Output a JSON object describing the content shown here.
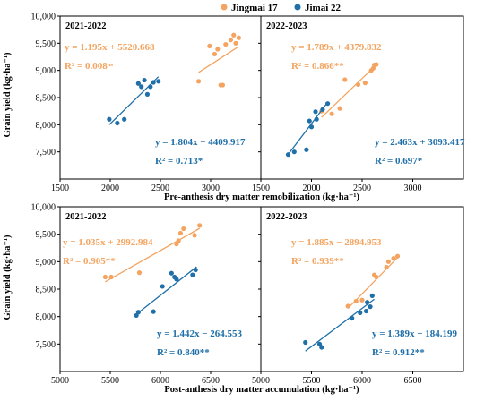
{
  "colors": {
    "jingmai": "#F4A460",
    "jimai": "#1F6FA8"
  },
  "legend": [
    {
      "name": "Jingmai 17",
      "color": "#F4A460"
    },
    {
      "name": "Jimai 22",
      "color": "#1F6FA8"
    }
  ],
  "chart_data": [
    {
      "type": "scatter",
      "title": "2021-2022",
      "xlabel": "Pre-anthesis dry matter remobilization (kg·ha⁻¹)",
      "ylabel": "Grain yield (kg·ha⁻¹)",
      "xlim": [
        1500,
        3500
      ],
      "ylim": [
        7000,
        10000
      ],
      "xticks": [
        1500,
        2000,
        2500,
        3000
      ],
      "yticks": [
        7500,
        8000,
        8500,
        9000,
        9500,
        10000
      ],
      "series": [
        {
          "name": "Jingmai 17",
          "color": "#F4A460",
          "x": [
            2880,
            2990,
            3040,
            3070,
            3100,
            3120,
            3150,
            3200,
            3230,
            3250,
            3280
          ],
          "y": [
            8800,
            9450,
            9300,
            9390,
            8730,
            8730,
            9480,
            9560,
            9650,
            9500,
            9600
          ],
          "fit": {
            "slope": 1.195,
            "intercept": 5520.668,
            "x_range": [
              2880,
              3280
            ]
          },
          "equation": "y = 1.195x + 5520.668",
          "r2": "R² = 0.008ⁿˢ"
        },
        {
          "name": "Jimai 22",
          "color": "#1F6FA8",
          "x": [
            1990,
            2070,
            2140,
            2280,
            2310,
            2340,
            2370,
            2400,
            2430,
            2480
          ],
          "y": [
            8100,
            8030,
            8100,
            8760,
            8700,
            8820,
            8560,
            8700,
            8780,
            8800
          ],
          "fit": {
            "slope": 1.804,
            "intercept": 4409.917,
            "x_range": [
              1990,
              2480
            ]
          },
          "equation": "y = 1.804x + 4409.917",
          "r2": "R² = 0.713*"
        }
      ]
    },
    {
      "type": "scatter",
      "title": "2022-2023",
      "xlabel": "Pre-anthesis dry matter remobilization (kg·ha⁻¹)",
      "ylabel": "",
      "xlim": [
        1500,
        3500
      ],
      "ylim": [
        7000,
        10000
      ],
      "xticks": [
        1500,
        2000,
        2500,
        3000
      ],
      "yticks": [
        7500,
        8000,
        8500,
        9000,
        9500,
        10000
      ],
      "series": [
        {
          "name": "Jingmai 17",
          "color": "#F4A460",
          "x": [
            2100,
            2200,
            2280,
            2330,
            2460,
            2530,
            2590,
            2610,
            2620,
            2640
          ],
          "y": [
            8250,
            8200,
            8300,
            8830,
            8740,
            8770,
            9000,
            9040,
            9100,
            9110
          ],
          "fit": {
            "slope": 1.789,
            "intercept": 4379.832,
            "x_range": [
              2100,
              2640
            ]
          },
          "equation": "y = 1.789x + 4379.832",
          "r2": "R² = 0.866**"
        },
        {
          "name": "Jimai 22",
          "color": "#1F6FA8",
          "x": [
            1770,
            1830,
            1950,
            1980,
            2000,
            2040,
            2050,
            2110,
            2160
          ],
          "y": [
            7450,
            7500,
            7540,
            8070,
            7960,
            8240,
            8100,
            8280,
            8390
          ],
          "fit": {
            "slope": 2.463,
            "intercept": 3093.417,
            "x_range": [
              1760,
              2160
            ]
          },
          "equation": "y = 2.463x + 3093.417",
          "r2": "R² = 0.697*"
        }
      ]
    },
    {
      "type": "scatter",
      "title": "2021-2022",
      "xlabel": "Post-anthesis dry matter accumulation (kg·ha⁻¹)",
      "ylabel": "Grain yield (kg·ha⁻¹)",
      "xlim": [
        5000,
        7000
      ],
      "ylim": [
        7000,
        10000
      ],
      "xticks": [
        5000,
        5500,
        6000,
        6500
      ],
      "yticks": [
        7500,
        8000,
        8500,
        9000,
        9500,
        10000
      ],
      "series": [
        {
          "name": "Jingmai 17",
          "color": "#F4A460",
          "x": [
            5450,
            5510,
            5790,
            6160,
            6180,
            6200,
            6230,
            6340,
            6390
          ],
          "y": [
            8720,
            8720,
            8800,
            9320,
            9380,
            9520,
            9600,
            9480,
            9660
          ],
          "fit": {
            "slope": 1.035,
            "intercept": 2992.984,
            "x_range": [
              5450,
              6390
            ]
          },
          "equation": "y = 1.035x + 2992.984",
          "r2": "R² = 0.905**"
        },
        {
          "name": "Jimai 22",
          "color": "#1F6FA8",
          "x": [
            5760,
            5780,
            5930,
            6020,
            6110,
            6140,
            6160,
            6320,
            6350
          ],
          "y": [
            8020,
            8080,
            8090,
            8550,
            8790,
            8720,
            8680,
            8760,
            8850
          ],
          "fit": {
            "slope": 1.442,
            "intercept": -264.553,
            "x_range": [
              5760,
              6360
            ]
          },
          "equation": "y = 1.442x − 264.553",
          "r2": "R² = 0.840**"
        }
      ]
    },
    {
      "type": "scatter",
      "title": "2022-2023",
      "xlabel": "Post-anthesis dry matter accumulation (kg·ha⁻¹)",
      "ylabel": "",
      "xlim": [
        5000,
        7000
      ],
      "ylim": [
        7000,
        10000
      ],
      "xticks": [
        5000,
        5500,
        6000,
        6500
      ],
      "yticks": [
        7500,
        8000,
        8500,
        9000,
        9500,
        10000
      ],
      "series": [
        {
          "name": "Jingmai 17",
          "color": "#F4A460",
          "x": [
            5860,
            5940,
            6000,
            6120,
            6140,
            6240,
            6260,
            6310,
            6350
          ],
          "y": [
            8190,
            8280,
            8300,
            8760,
            8720,
            8900,
            9000,
            9060,
            9100
          ],
          "fit": {
            "slope": 1.885,
            "intercept": -2894.953,
            "x_range": [
              5860,
              6370
            ]
          },
          "equation": "y = 1.885x − 2894.953",
          "r2": "R² = 0.939**"
        },
        {
          "name": "Jimai 22",
          "color": "#1F6FA8",
          "x": [
            5440,
            5580,
            5600,
            5900,
            5980,
            6040,
            6050,
            6080,
            6100
          ],
          "y": [
            7530,
            7500,
            7440,
            7970,
            8070,
            8100,
            8260,
            8180,
            8380
          ],
          "fit": {
            "slope": 1.389,
            "intercept": -184.199,
            "x_range": [
              5440,
              6120
            ]
          },
          "equation": "y = 1.389x − 184.199",
          "r2": "R² = 0.912**"
        }
      ]
    }
  ]
}
